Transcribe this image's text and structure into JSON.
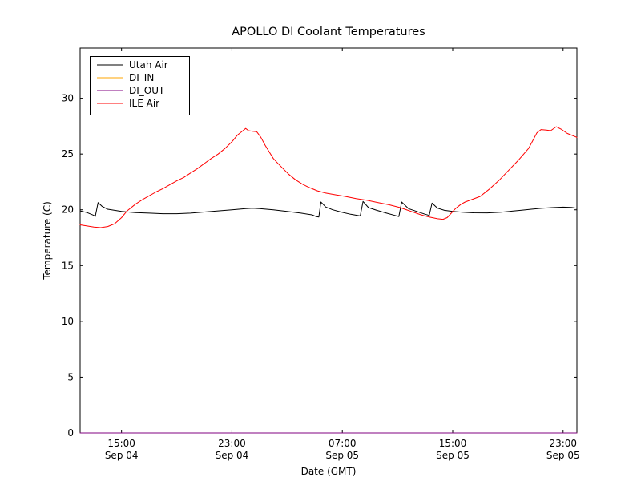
{
  "window": {
    "background": "#ffffff"
  },
  "chart_data": {
    "type": "line",
    "title": "APOLLO DI Coolant Temperatures",
    "xlabel": "Date (GMT)",
    "ylabel": "Temperature (C)",
    "x_unit": "hours since Sep 04 12:00 GMT",
    "xlim": [
      0,
      36
    ],
    "ylim": [
      0,
      34.5
    ],
    "grid": false,
    "legend_position": "upper left",
    "frame_color": "#000000",
    "y_ticks": [
      0,
      5,
      10,
      15,
      20,
      25,
      30
    ],
    "x_ticks": [
      {
        "hour": 3,
        "label": "15:00",
        "sublabel": "Sep 04"
      },
      {
        "hour": 11,
        "label": "23:00",
        "sublabel": "Sep 04"
      },
      {
        "hour": 19,
        "label": "07:00",
        "sublabel": "Sep 05"
      },
      {
        "hour": 27,
        "label": "15:00",
        "sublabel": "Sep 05"
      },
      {
        "hour": 35,
        "label": "23:00",
        "sublabel": "Sep 05"
      }
    ],
    "series": [
      {
        "name": "Utah Air",
        "color": "#000000",
        "x": [
          0,
          0.5,
          0.8,
          1.0,
          1.1,
          1.3,
          1.6,
          2,
          2.5,
          3,
          4,
          5,
          6,
          7,
          8,
          9,
          10,
          11,
          12,
          12.5,
          13,
          14,
          15,
          16,
          16.8,
          17.1,
          17.3,
          17.45,
          17.8,
          18.3,
          18.9,
          19.6,
          20.1,
          20.3,
          20.5,
          20.9,
          21.5,
          22.2,
          22.8,
          23.1,
          23.3,
          23.8,
          24.4,
          25.0,
          25.3,
          25.5,
          25.9,
          26.4,
          27,
          27.7,
          28.5,
          29.5,
          30.5,
          31.3,
          32,
          32.7,
          33.4,
          34.2,
          35,
          35.6,
          36
        ],
        "y": [
          19.9,
          19.75,
          19.6,
          19.5,
          19.4,
          20.65,
          20.3,
          20.05,
          19.95,
          19.85,
          19.75,
          19.7,
          19.65,
          19.65,
          19.7,
          19.8,
          19.9,
          20.0,
          20.1,
          20.15,
          20.1,
          20.0,
          19.85,
          19.7,
          19.55,
          19.4,
          19.35,
          20.7,
          20.25,
          20.0,
          19.8,
          19.6,
          19.5,
          19.45,
          20.75,
          20.2,
          19.95,
          19.7,
          19.5,
          19.4,
          20.7,
          20.1,
          19.85,
          19.6,
          19.5,
          20.6,
          20.15,
          19.95,
          19.85,
          19.78,
          19.73,
          19.72,
          19.78,
          19.88,
          19.97,
          20.05,
          20.13,
          20.2,
          20.24,
          20.22,
          20.15
        ]
      },
      {
        "name": "DI_IN",
        "color": "#ffa500",
        "x": [
          0,
          36
        ],
        "y": [
          0,
          0
        ]
      },
      {
        "name": "DI_OUT",
        "color": "#800080",
        "x": [
          0,
          36
        ],
        "y": [
          0,
          0
        ]
      },
      {
        "name": "ILE Air",
        "color": "#ff0000",
        "x": [
          0,
          0.5,
          1,
          1.5,
          2,
          2.5,
          3,
          3.4,
          4,
          4.5,
          5,
          5.5,
          6,
          6.5,
          7,
          7.5,
          8,
          8.5,
          9,
          9.5,
          10,
          10.5,
          11,
          11.4,
          11.8,
          12.0,
          12.2,
          12.5,
          12.8,
          13.1,
          13.4,
          13.7,
          14.0,
          14.3,
          14.7,
          15.1,
          15.6,
          16.1,
          16.6,
          17.2,
          17.8,
          18.5,
          19.2,
          20,
          20.8,
          21.6,
          22.4,
          23.2,
          24,
          24.7,
          25.3,
          25.9,
          26.3,
          26.6,
          26.9,
          27.2,
          27.6,
          27.9,
          28.45,
          29,
          29.7,
          30.4,
          31.1,
          31.8,
          32.5,
          32.8,
          33.1,
          33.4,
          33.8,
          34.1,
          34.5,
          34.9,
          35.3,
          36
        ],
        "y": [
          18.65,
          18.55,
          18.45,
          18.4,
          18.5,
          18.75,
          19.3,
          19.9,
          20.5,
          20.9,
          21.25,
          21.6,
          21.9,
          22.25,
          22.6,
          22.9,
          23.3,
          23.7,
          24.15,
          24.6,
          25.0,
          25.5,
          26.1,
          26.7,
          27.1,
          27.3,
          27.1,
          27.05,
          27.0,
          26.5,
          25.8,
          25.2,
          24.6,
          24.2,
          23.7,
          23.2,
          22.7,
          22.3,
          22.0,
          21.7,
          21.5,
          21.35,
          21.2,
          21.0,
          20.85,
          20.65,
          20.45,
          20.2,
          19.85,
          19.55,
          19.35,
          19.2,
          19.15,
          19.3,
          19.7,
          20.1,
          20.5,
          20.7,
          20.95,
          21.2,
          21.9,
          22.7,
          23.6,
          24.5,
          25.5,
          26.2,
          26.9,
          27.2,
          27.15,
          27.1,
          27.45,
          27.2,
          26.85,
          26.5
        ]
      }
    ]
  }
}
